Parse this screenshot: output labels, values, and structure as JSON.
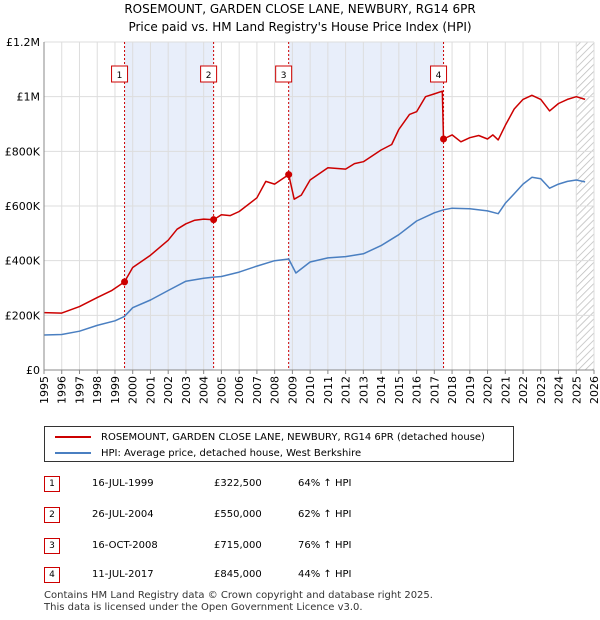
{
  "chart_data": {
    "type": "line",
    "title": "ROSEMOUNT, GARDEN CLOSE LANE, NEWBURY, RG14 6PR",
    "subtitle": "Price paid vs. HM Land Registry's House Price Index (HPI)",
    "xlim": [
      1995,
      2026
    ],
    "ylim": [
      0,
      1200000
    ],
    "y_ticks": [
      {
        "value": 0,
        "label": "£0"
      },
      {
        "value": 200000,
        "label": "£200K"
      },
      {
        "value": 400000,
        "label": "£400K"
      },
      {
        "value": 600000,
        "label": "£600K"
      },
      {
        "value": 800000,
        "label": "£800K"
      },
      {
        "value": 1000000,
        "label": "£1M"
      },
      {
        "value": 1200000,
        "label": "£1.2M"
      }
    ],
    "x_ticks": [
      "1995",
      "1996",
      "1997",
      "1998",
      "1999",
      "2000",
      "2001",
      "2002",
      "2003",
      "2004",
      "2005",
      "2006",
      "2007",
      "2008",
      "2009",
      "2010",
      "2011",
      "2012",
      "2013",
      "2014",
      "2015",
      "2016",
      "2017",
      "2018",
      "2019",
      "2020",
      "2021",
      "2022",
      "2023",
      "2024",
      "2025",
      "2026"
    ],
    "series": [
      {
        "name": "ROSEMOUNT, GARDEN CLOSE LANE, NEWBURY, RG14 6PR (detached house)",
        "color": "#cc0000",
        "points": [
          [
            1995.0,
            210000
          ],
          [
            1996.0,
            208000
          ],
          [
            1997.0,
            232000
          ],
          [
            1998.0,
            265000
          ],
          [
            1998.8,
            290000
          ],
          [
            1999.54,
            322500
          ],
          [
            2000.0,
            375000
          ],
          [
            2001.0,
            420000
          ],
          [
            2002.0,
            475000
          ],
          [
            2002.5,
            515000
          ],
          [
            2003.0,
            535000
          ],
          [
            2003.5,
            548000
          ],
          [
            2004.0,
            552000
          ],
          [
            2004.56,
            550000
          ],
          [
            2005.0,
            568000
          ],
          [
            2005.5,
            565000
          ],
          [
            2006.0,
            580000
          ],
          [
            2007.0,
            630000
          ],
          [
            2007.5,
            690000
          ],
          [
            2008.0,
            680000
          ],
          [
            2008.79,
            715000
          ],
          [
            2009.1,
            625000
          ],
          [
            2009.5,
            640000
          ],
          [
            2010.0,
            695000
          ],
          [
            2011.0,
            740000
          ],
          [
            2012.0,
            735000
          ],
          [
            2012.5,
            755000
          ],
          [
            2013.0,
            762000
          ],
          [
            2014.0,
            805000
          ],
          [
            2014.6,
            825000
          ],
          [
            2015.0,
            880000
          ],
          [
            2015.6,
            935000
          ],
          [
            2016.0,
            945000
          ],
          [
            2016.5,
            1000000
          ],
          [
            2017.0,
            1010000
          ],
          [
            2017.45,
            1020000
          ],
          [
            2017.52,
            845000
          ],
          [
            2018.0,
            860000
          ],
          [
            2018.5,
            835000
          ],
          [
            2019.0,
            850000
          ],
          [
            2019.5,
            858000
          ],
          [
            2020.0,
            845000
          ],
          [
            2020.3,
            860000
          ],
          [
            2020.6,
            842000
          ],
          [
            2021.0,
            895000
          ],
          [
            2021.5,
            955000
          ],
          [
            2022.0,
            990000
          ],
          [
            2022.5,
            1005000
          ],
          [
            2023.0,
            990000
          ],
          [
            2023.5,
            948000
          ],
          [
            2024.0,
            975000
          ],
          [
            2024.5,
            990000
          ],
          [
            2025.0,
            1000000
          ],
          [
            2025.5,
            990000
          ]
        ]
      },
      {
        "name": "HPI: Average price, detached house, West Berkshire",
        "color": "#4a7fc1",
        "points": [
          [
            1995.0,
            128000
          ],
          [
            1996.0,
            130000
          ],
          [
            1997.0,
            142000
          ],
          [
            1998.0,
            163000
          ],
          [
            1999.0,
            180000
          ],
          [
            1999.54,
            196000
          ],
          [
            2000.0,
            228000
          ],
          [
            2001.0,
            256000
          ],
          [
            2002.0,
            291000
          ],
          [
            2003.0,
            325000
          ],
          [
            2004.0,
            336000
          ],
          [
            2004.56,
            340000
          ],
          [
            2005.0,
            342000
          ],
          [
            2006.0,
            358000
          ],
          [
            2007.0,
            380000
          ],
          [
            2008.0,
            400000
          ],
          [
            2008.79,
            406000
          ],
          [
            2009.2,
            355000
          ],
          [
            2010.0,
            395000
          ],
          [
            2011.0,
            410000
          ],
          [
            2012.0,
            415000
          ],
          [
            2013.0,
            425000
          ],
          [
            2014.0,
            455000
          ],
          [
            2015.0,
            495000
          ],
          [
            2016.0,
            545000
          ],
          [
            2017.0,
            575000
          ],
          [
            2017.52,
            586000
          ],
          [
            2018.0,
            592000
          ],
          [
            2019.0,
            590000
          ],
          [
            2020.0,
            582000
          ],
          [
            2020.6,
            572000
          ],
          [
            2021.0,
            610000
          ],
          [
            2021.5,
            645000
          ],
          [
            2022.0,
            680000
          ],
          [
            2022.5,
            705000
          ],
          [
            2023.0,
            700000
          ],
          [
            2023.5,
            665000
          ],
          [
            2024.0,
            680000
          ],
          [
            2024.5,
            690000
          ],
          [
            2025.0,
            695000
          ],
          [
            2025.5,
            688000
          ]
        ]
      }
    ],
    "sales": [
      {
        "label": "1",
        "x": 1999.54,
        "value": 322500
      },
      {
        "label": "2",
        "x": 2004.56,
        "value": 550000
      },
      {
        "label": "3",
        "x": 2008.79,
        "value": 715000
      },
      {
        "label": "4",
        "x": 2017.52,
        "value": 845000
      }
    ],
    "shaded_ranges": [
      [
        1999.54,
        2004.56
      ],
      [
        2008.79,
        2017.52
      ]
    ],
    "hatched_from": 2025.0
  },
  "legend": {
    "property_label": "ROSEMOUNT, GARDEN CLOSE LANE, NEWBURY, RG14 6PR (detached house)",
    "hpi_label": "HPI: Average price, detached house, West Berkshire",
    "property_color": "#cc0000",
    "hpi_color": "#4a7fc1"
  },
  "transactions": [
    {
      "num": "1",
      "date": "16-JUL-1999",
      "price": "£322,500",
      "hpi": "64% ↑ HPI"
    },
    {
      "num": "2",
      "date": "26-JUL-2004",
      "price": "£550,000",
      "hpi": "62% ↑ HPI"
    },
    {
      "num": "3",
      "date": "16-OCT-2008",
      "price": "£715,000",
      "hpi": "76% ↑ HPI"
    },
    {
      "num": "4",
      "date": "11-JUL-2017",
      "price": "£845,000",
      "hpi": "44% ↑ HPI"
    }
  ],
  "footer": {
    "line1": "Contains HM Land Registry data © Crown copyright and database right 2025.",
    "line2": "This data is licensed under the Open Government Licence v3.0."
  }
}
